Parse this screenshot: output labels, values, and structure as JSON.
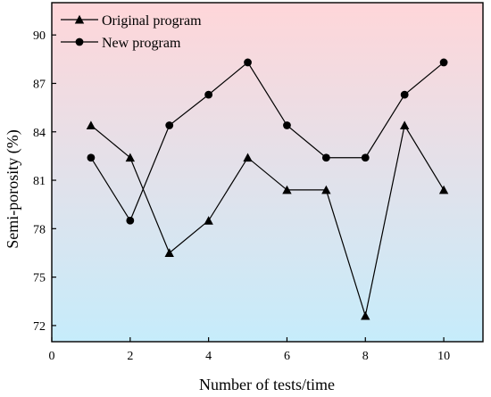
{
  "chart_data": {
    "type": "line",
    "title": "",
    "xlabel": "Number of tests/time",
    "ylabel": "Semi-porosity (%)",
    "xlim": [
      0,
      11
    ],
    "ylim": [
      71,
      92
    ],
    "xticks": [
      0,
      2,
      4,
      6,
      8,
      10
    ],
    "yticks": [
      72,
      75,
      78,
      81,
      84,
      87,
      90
    ],
    "grid": false,
    "legend_position": "top-left",
    "background": {
      "type": "vertical-gradient",
      "top_color": "#ffd6d9",
      "bottom_color": "#c6ecfb"
    },
    "x": [
      1,
      2,
      3,
      4,
      5,
      6,
      7,
      8,
      9,
      10
    ],
    "series": [
      {
        "name": "Original program",
        "marker": "triangle",
        "color": "#000000",
        "values": [
          84.4,
          82.4,
          76.5,
          78.5,
          82.4,
          80.4,
          80.4,
          72.6,
          84.4,
          80.4
        ]
      },
      {
        "name": "New program",
        "marker": "circle",
        "color": "#000000",
        "values": [
          82.4,
          78.5,
          84.4,
          86.3,
          88.3,
          84.4,
          82.4,
          82.4,
          86.3,
          88.3
        ]
      }
    ]
  }
}
